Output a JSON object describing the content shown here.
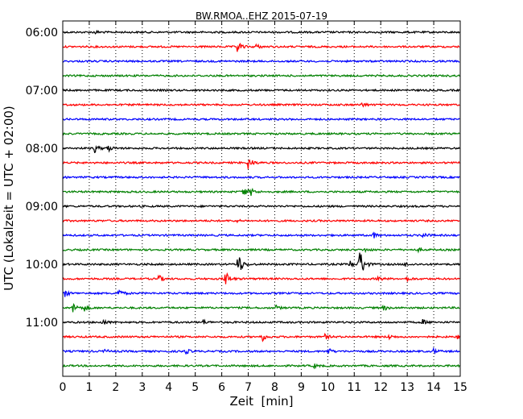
{
  "chart_data": {
    "type": "line",
    "title": "BW.RMOA..EHZ 2015-07-19",
    "xlabel": "Zeit  [min]",
    "ylabel": "UTC (Lokalzeit = UTC + 02:00)",
    "xlim": [
      0,
      15
    ],
    "x_ticks": [
      "0",
      "1",
      "2",
      "3",
      "4",
      "5",
      "6",
      "7",
      "8",
      "9",
      "10",
      "11",
      "12",
      "13",
      "14",
      "15"
    ],
    "y_tick_labels": [
      "06:00",
      "07:00",
      "08:00",
      "09:00",
      "10:00",
      "11:00"
    ],
    "grid": "vertical dotted",
    "colors": [
      "#000000",
      "#ff0000",
      "#0000ff",
      "#008000"
    ],
    "series": [
      {
        "start": "06:00",
        "events": [
          [
            1.2,
            0.3
          ]
        ]
      },
      {
        "start": "06:15",
        "events": [
          [
            6.6,
            1.0
          ],
          [
            7.3,
            0.4
          ]
        ]
      },
      {
        "start": "06:30",
        "events": []
      },
      {
        "start": "06:45",
        "events": []
      },
      {
        "start": "07:00",
        "events": []
      },
      {
        "start": "07:15",
        "events": [
          [
            11.3,
            0.4
          ]
        ]
      },
      {
        "start": "07:30",
        "events": []
      },
      {
        "start": "07:45",
        "events": []
      },
      {
        "start": "08:00",
        "events": [
          [
            1.2,
            0.8
          ],
          [
            1.7,
            0.6
          ]
        ]
      },
      {
        "start": "08:15",
        "events": [
          [
            7.0,
            1.2
          ]
        ]
      },
      {
        "start": "08:30",
        "events": []
      },
      {
        "start": "08:45",
        "events": [
          [
            6.8,
            1.0
          ],
          [
            7.1,
            0.6
          ]
        ]
      },
      {
        "start": "09:00",
        "events": []
      },
      {
        "start": "09:15",
        "events": [
          [
            6.5,
            0.3
          ]
        ]
      },
      {
        "start": "09:30",
        "events": [
          [
            11.7,
            0.6
          ],
          [
            13.6,
            0.5
          ]
        ]
      },
      {
        "start": "09:45",
        "events": [
          [
            11.4,
            0.3
          ],
          [
            13.4,
            0.3
          ]
        ]
      },
      {
        "start": "10:00",
        "events": [
          [
            6.6,
            2.6
          ],
          [
            10.8,
            0.8
          ],
          [
            11.2,
            3.6
          ],
          [
            12.9,
            0.4
          ]
        ]
      },
      {
        "start": "10:15",
        "events": [
          [
            3.6,
            0.8
          ],
          [
            6.1,
            2.0
          ],
          [
            11.9,
            0.4
          ],
          [
            13.0,
            0.4
          ]
        ]
      },
      {
        "start": "10:30",
        "events": [
          [
            2.1,
            0.8
          ],
          [
            0.1,
            0.5
          ]
        ]
      },
      {
        "start": "10:45",
        "events": [
          [
            0.4,
            0.9
          ],
          [
            0.8,
            0.6
          ],
          [
            8.0,
            0.5
          ],
          [
            12.1,
            0.5
          ]
        ]
      },
      {
        "start": "11:00",
        "events": [
          [
            1.5,
            0.6
          ],
          [
            5.3,
            0.4
          ],
          [
            13.6,
            0.4
          ]
        ]
      },
      {
        "start": "11:15",
        "events": [
          [
            7.5,
            0.9
          ],
          [
            9.9,
            0.4
          ],
          [
            12.3,
            0.4
          ],
          [
            14.9,
            0.4
          ]
        ]
      },
      {
        "start": "11:30",
        "events": [
          [
            4.6,
            0.6
          ],
          [
            10.0,
            0.6
          ],
          [
            14.0,
            0.4
          ],
          [
            1.6,
            0.3
          ]
        ]
      },
      {
        "start": "11:45",
        "events": [
          [
            9.5,
            0.3
          ]
        ]
      }
    ]
  }
}
